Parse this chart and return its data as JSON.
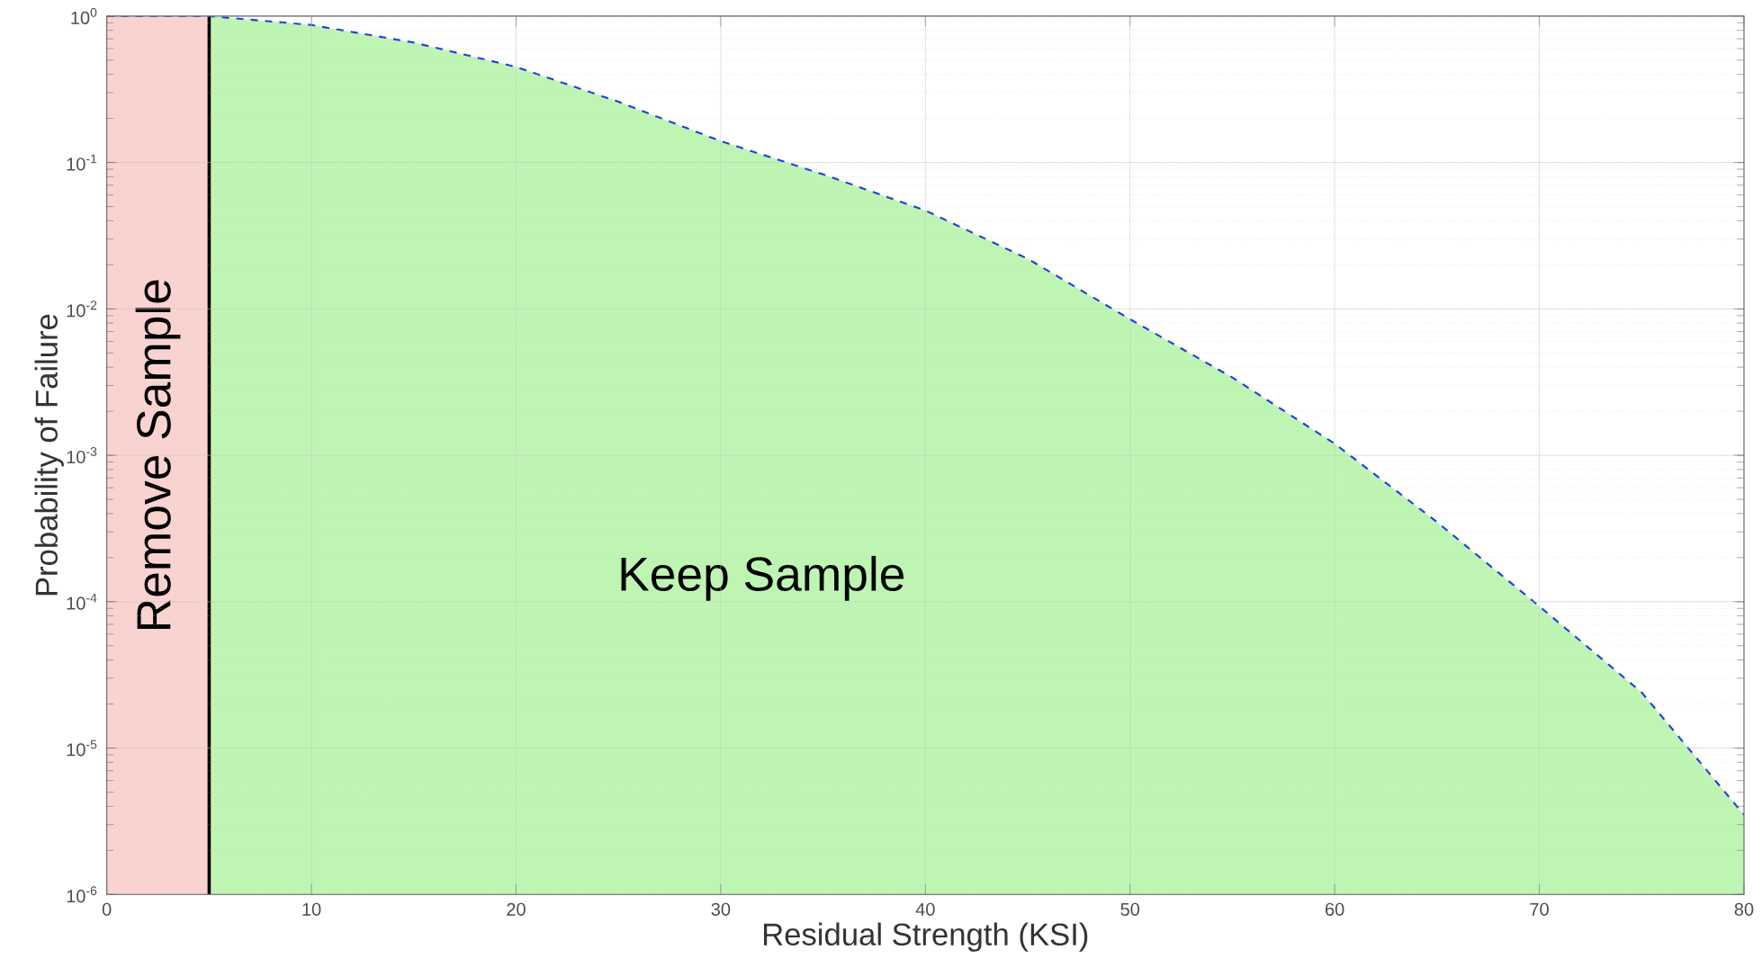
{
  "chart_data": {
    "type": "line",
    "xlabel": "Residual Strength (KSI)",
    "ylabel": "Probability of Failure",
    "log": "y",
    "grid": true,
    "xlim": [
      0,
      80
    ],
    "ylim": [
      1e-06,
      1
    ],
    "xticks": [
      0,
      10,
      20,
      30,
      40,
      50,
      60,
      70,
      80
    ],
    "yticks": [
      {
        "value": 1e-06,
        "label": "10$^{-6}$"
      },
      {
        "value": 1e-05,
        "label": "10$^{-5}$"
      },
      {
        "value": 0.0001,
        "label": "10$^{-4}$"
      },
      {
        "value": 0.001,
        "label": "10$^{-3}$"
      },
      {
        "value": 0.01,
        "label": "10$^{-2}$"
      },
      {
        "value": 0.1,
        "label": "10$^{-1}$"
      },
      {
        "value": 1,
        "label": "10$^{0}$"
      }
    ],
    "series": [
      {
        "type": "area",
        "color": "#bff5b3",
        "x": [
          5,
          10,
          15,
          20,
          25,
          30,
          35,
          40,
          45,
          50,
          55,
          60,
          65,
          70,
          75,
          80
        ],
        "values": [
          1.0,
          0.87,
          0.66,
          0.45,
          0.26,
          0.14,
          0.083,
          0.047,
          0.022,
          0.0085,
          0.0034,
          0.0012,
          0.00035,
          9.3e-05,
          2.4e-05,
          3.5e-06
        ]
      },
      {
        "color": "#1f3fe0",
        "line_style": "dashed",
        "x": [
          0,
          5,
          10,
          15,
          20,
          25,
          30,
          35,
          40,
          45,
          50,
          55,
          60,
          65,
          70,
          75,
          80
        ],
        "values": [
          1.0,
          1.0,
          0.87,
          0.66,
          0.45,
          0.26,
          0.14,
          0.083,
          0.047,
          0.022,
          0.0085,
          0.0034,
          0.0012,
          0.00035,
          9.3e-05,
          2.4e-05,
          3.5e-06
        ]
      }
    ],
    "bands": [
      {
        "axis": "x",
        "from": 0,
        "to": 5,
        "label": "Remove Sample",
        "color": "#f9d3cf"
      }
    ],
    "ref_lines": [
      {
        "axis": "x",
        "value": 5,
        "color": "#000000"
      }
    ],
    "annotations": [
      "Keep Sample"
    ]
  }
}
